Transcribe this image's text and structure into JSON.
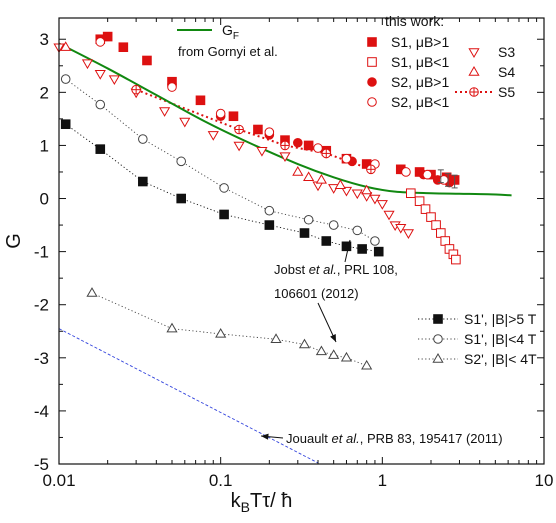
{
  "chart_data": {
    "type": "scatter",
    "x_scale": "log",
    "xlim": [
      0.01,
      10
    ],
    "ylim": [
      -5,
      3.4
    ],
    "xticks": [
      {
        "v": 0.01,
        "label": "0.01"
      },
      {
        "v": 0.1,
        "label": "0.1"
      },
      {
        "v": 1,
        "label": "1"
      },
      {
        "v": 10,
        "label": "10"
      }
    ],
    "yticks": [
      {
        "v": 3,
        "label": "3"
      },
      {
        "v": 2,
        "label": "2"
      },
      {
        "v": 1,
        "label": "1"
      },
      {
        "v": 0,
        "label": "0"
      },
      {
        "v": -1,
        "label": "-1"
      },
      {
        "v": -2,
        "label": "-2"
      },
      {
        "v": -3,
        "label": "-3"
      },
      {
        "v": -4,
        "label": "-4"
      },
      {
        "v": -5,
        "label": "-5"
      }
    ],
    "xlabel": "k_BTτ/ ħ",
    "ylabel": "G",
    "grid": false,
    "legend_header": "this work:",
    "colors": {
      "red": "#dd1111",
      "green": "#118811",
      "black": "#111111",
      "gray": "#444444",
      "blue": "#3344dd"
    },
    "series": [
      {
        "name": "S1, μB>1",
        "marker": "square-filled",
        "color": "#dd1111",
        "x": [
          0.018,
          0.02,
          0.025,
          0.035,
          0.05,
          0.075,
          0.12,
          0.17,
          0.25,
          0.35,
          0.45,
          0.6,
          0.8,
          1.3,
          1.7,
          2.0,
          2.5,
          2.8
        ],
        "y": [
          3.0,
          3.05,
          2.85,
          2.6,
          2.2,
          1.85,
          1.55,
          1.3,
          1.1,
          1.0,
          0.9,
          0.75,
          0.65,
          0.55,
          0.5,
          0.45,
          0.4,
          0.35
        ]
      },
      {
        "name": "S1, μB<1",
        "marker": "square-open",
        "color": "#dd1111",
        "x": [
          1.5,
          1.7,
          1.85,
          2.0,
          2.15,
          2.3,
          2.45,
          2.6,
          2.75,
          2.85
        ],
        "y": [
          0.1,
          -0.05,
          -0.2,
          -0.35,
          -0.5,
          -0.65,
          -0.8,
          -0.95,
          -1.05,
          -1.15
        ]
      },
      {
        "name": "S2, μB>1",
        "marker": "circle-filled",
        "color": "#dd1111",
        "x": [
          0.018,
          0.05,
          0.1,
          0.2,
          0.3,
          0.45,
          0.65,
          1.3,
          1.8,
          2.2,
          2.6
        ],
        "y": [
          3.0,
          2.15,
          1.55,
          1.2,
          1.05,
          0.85,
          0.7,
          0.55,
          0.45,
          0.35,
          0.3
        ]
      },
      {
        "name": "S2, μB<1",
        "marker": "circle-open",
        "color": "#dd1111",
        "x": [
          0.018,
          0.05,
          0.1,
          0.2,
          0.4,
          0.6,
          0.9,
          1.4,
          1.9,
          2.4
        ],
        "y": [
          2.95,
          2.1,
          1.6,
          1.25,
          0.95,
          0.75,
          0.65,
          0.5,
          0.45,
          0.35
        ]
      },
      {
        "name": "S3",
        "marker": "triangle-down-open",
        "color": "#dd1111",
        "x": [
          0.01,
          0.015,
          0.018,
          0.022,
          0.03,
          0.045,
          0.06,
          0.09,
          0.13,
          0.18,
          0.25,
          0.4,
          0.5,
          0.6,
          0.7,
          0.8,
          0.9,
          1.0,
          1.1,
          1.2,
          1.3,
          1.45
        ],
        "y": [
          2.85,
          2.55,
          2.35,
          2.25,
          2.0,
          1.65,
          1.45,
          1.2,
          1.0,
          0.9,
          0.8,
          0.25,
          0.2,
          0.15,
          0.1,
          0.05,
          0.0,
          -0.1,
          -0.3,
          -0.5,
          -0.55,
          -0.65
        ]
      },
      {
        "name": "S4",
        "marker": "triangle-up-open",
        "color": "#dd1111",
        "x": [
          0.011,
          0.3,
          0.35,
          0.42,
          0.55,
          0.8
        ],
        "y": [
          2.85,
          0.5,
          0.4,
          0.35,
          0.25,
          0.15
        ]
      },
      {
        "name": "S5",
        "marker": "circle-plus",
        "color": "#dd1111",
        "line": "dotted",
        "x": [
          0.03,
          0.13,
          0.25,
          0.45,
          0.85
        ],
        "y": [
          2.05,
          1.3,
          1.0,
          0.85,
          0.55
        ]
      },
      {
        "name": "S1', |B|>5 T",
        "marker": "square-filled",
        "color": "#111111",
        "line": "dotted",
        "x": [
          0.011,
          0.018,
          0.033,
          0.057,
          0.105,
          0.2,
          0.33,
          0.45,
          0.6,
          0.75,
          0.95
        ],
        "y": [
          1.4,
          0.93,
          0.32,
          0.0,
          -0.3,
          -0.5,
          -0.65,
          -0.8,
          -0.9,
          -0.95,
          -1.0
        ]
      },
      {
        "name": "S1', |B|<4 T",
        "marker": "circle-open",
        "color": "#444444",
        "line": "dotted",
        "x": [
          0.011,
          0.018,
          0.033,
          0.057,
          0.105,
          0.2,
          0.35,
          0.5,
          0.7,
          0.9
        ],
        "y": [
          2.25,
          1.77,
          1.12,
          0.7,
          0.2,
          -0.23,
          -0.4,
          -0.5,
          -0.6,
          -0.8
        ]
      },
      {
        "name": "S2', |B|< 4T",
        "marker": "triangle-up-open",
        "color": "#444444",
        "line": "dotted",
        "x": [
          0.016,
          0.05,
          0.1,
          0.22,
          0.33,
          0.42,
          0.5,
          0.6,
          0.8
        ],
        "y": [
          -1.78,
          -2.45,
          -2.55,
          -2.65,
          -2.75,
          -2.88,
          -2.95,
          -3.0,
          -3.15
        ]
      },
      {
        "name": "G_F",
        "marker": "none",
        "color": "#118811",
        "line": "solid",
        "x": [
          0.01,
          0.02,
          0.04,
          0.08,
          0.15,
          0.3,
          0.5,
          0.8,
          1.2,
          2.0,
          3.0,
          4.5,
          6.3
        ],
        "y": [
          2.92,
          2.45,
          1.95,
          1.45,
          1.05,
          0.65,
          0.4,
          0.22,
          0.13,
          0.1,
          0.09,
          0.08,
          0.06
        ]
      },
      {
        "name": "Jouault",
        "marker": "none",
        "color": "#3344dd",
        "line": "dashed",
        "x": [
          0.01,
          0.4
        ],
        "y": [
          -2.45,
          -4.98
        ]
      }
    ],
    "legend_entries": [
      {
        "label": "G",
        "sub": "F",
        "series": 10
      },
      {
        "label": "S1, μB>1",
        "series": 0
      },
      {
        "label": "S1, μB<1",
        "series": 1
      },
      {
        "label": "S2, μB>1",
        "series": 2
      },
      {
        "label": "S2, μB<1",
        "series": 3
      },
      {
        "label": "S3",
        "series": 4
      },
      {
        "label": "S4",
        "series": 5
      },
      {
        "label": "S5",
        "series": 6
      },
      {
        "label": "S1', |B|>5 T",
        "series": 7
      },
      {
        "label": "S1', |B|<4 T",
        "series": 8
      },
      {
        "label": "S2', |B|< 4T",
        "series": 9
      }
    ],
    "annotations": [
      {
        "id": "gornyi",
        "text": "from Gornyi et al."
      },
      {
        "id": "jobst1",
        "prefix": "Jobst ",
        "italic": "et al.",
        "suffix": ", PRL 108,"
      },
      {
        "id": "jobst2",
        "text": "106601 (2012)"
      },
      {
        "id": "jouault",
        "prefix": "Jouault ",
        "italic": "et al.",
        "suffix": ", PRB 83, 195417 (2011)"
      }
    ]
  }
}
